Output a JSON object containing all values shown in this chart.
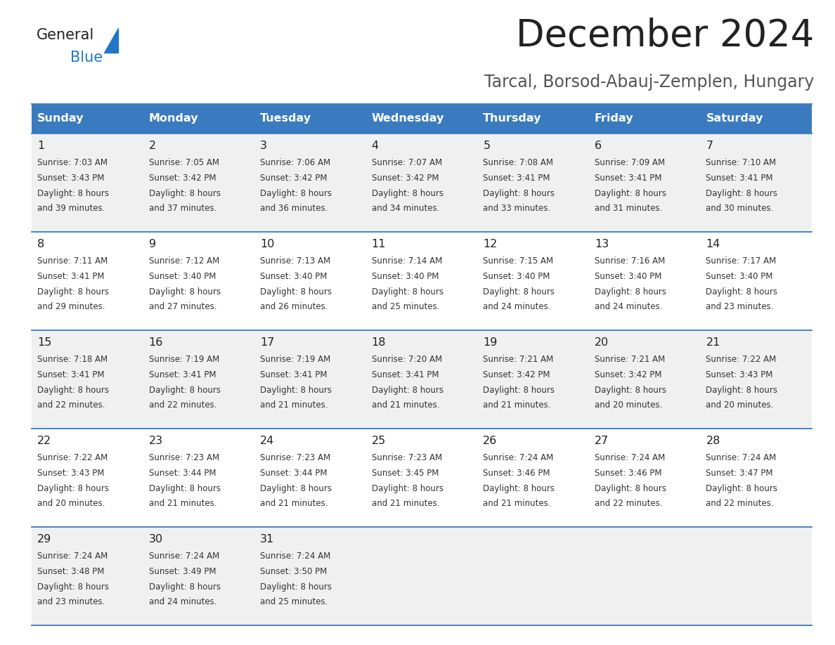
{
  "title": "December 2024",
  "subtitle": "Tarcal, Borsod-Abauj-Zemplen, Hungary",
  "header_bg": "#3a7bbf",
  "header_text": "#ffffff",
  "row_bg_odd": "#f0f0f0",
  "row_bg_even": "#ffffff",
  "day_names": [
    "Sunday",
    "Monday",
    "Tuesday",
    "Wednesday",
    "Thursday",
    "Friday",
    "Saturday"
  ],
  "calendar_data": [
    [
      {
        "day": 1,
        "sunrise": "7:03 AM",
        "sunset": "3:43 PM",
        "daylight": "8 hours and 39 minutes."
      },
      {
        "day": 2,
        "sunrise": "7:05 AM",
        "sunset": "3:42 PM",
        "daylight": "8 hours and 37 minutes."
      },
      {
        "day": 3,
        "sunrise": "7:06 AM",
        "sunset": "3:42 PM",
        "daylight": "8 hours and 36 minutes."
      },
      {
        "day": 4,
        "sunrise": "7:07 AM",
        "sunset": "3:42 PM",
        "daylight": "8 hours and 34 minutes."
      },
      {
        "day": 5,
        "sunrise": "7:08 AM",
        "sunset": "3:41 PM",
        "daylight": "8 hours and 33 minutes."
      },
      {
        "day": 6,
        "sunrise": "7:09 AM",
        "sunset": "3:41 PM",
        "daylight": "8 hours and 31 minutes."
      },
      {
        "day": 7,
        "sunrise": "7:10 AM",
        "sunset": "3:41 PM",
        "daylight": "8 hours and 30 minutes."
      }
    ],
    [
      {
        "day": 8,
        "sunrise": "7:11 AM",
        "sunset": "3:41 PM",
        "daylight": "8 hours and 29 minutes."
      },
      {
        "day": 9,
        "sunrise": "7:12 AM",
        "sunset": "3:40 PM",
        "daylight": "8 hours and 27 minutes."
      },
      {
        "day": 10,
        "sunrise": "7:13 AM",
        "sunset": "3:40 PM",
        "daylight": "8 hours and 26 minutes."
      },
      {
        "day": 11,
        "sunrise": "7:14 AM",
        "sunset": "3:40 PM",
        "daylight": "8 hours and 25 minutes."
      },
      {
        "day": 12,
        "sunrise": "7:15 AM",
        "sunset": "3:40 PM",
        "daylight": "8 hours and 24 minutes."
      },
      {
        "day": 13,
        "sunrise": "7:16 AM",
        "sunset": "3:40 PM",
        "daylight": "8 hours and 24 minutes."
      },
      {
        "day": 14,
        "sunrise": "7:17 AM",
        "sunset": "3:40 PM",
        "daylight": "8 hours and 23 minutes."
      }
    ],
    [
      {
        "day": 15,
        "sunrise": "7:18 AM",
        "sunset": "3:41 PM",
        "daylight": "8 hours and 22 minutes."
      },
      {
        "day": 16,
        "sunrise": "7:19 AM",
        "sunset": "3:41 PM",
        "daylight": "8 hours and 22 minutes."
      },
      {
        "day": 17,
        "sunrise": "7:19 AM",
        "sunset": "3:41 PM",
        "daylight": "8 hours and 21 minutes."
      },
      {
        "day": 18,
        "sunrise": "7:20 AM",
        "sunset": "3:41 PM",
        "daylight": "8 hours and 21 minutes."
      },
      {
        "day": 19,
        "sunrise": "7:21 AM",
        "sunset": "3:42 PM",
        "daylight": "8 hours and 21 minutes."
      },
      {
        "day": 20,
        "sunrise": "7:21 AM",
        "sunset": "3:42 PM",
        "daylight": "8 hours and 20 minutes."
      },
      {
        "day": 21,
        "sunrise": "7:22 AM",
        "sunset": "3:43 PM",
        "daylight": "8 hours and 20 minutes."
      }
    ],
    [
      {
        "day": 22,
        "sunrise": "7:22 AM",
        "sunset": "3:43 PM",
        "daylight": "8 hours and 20 minutes."
      },
      {
        "day": 23,
        "sunrise": "7:23 AM",
        "sunset": "3:44 PM",
        "daylight": "8 hours and 21 minutes."
      },
      {
        "day": 24,
        "sunrise": "7:23 AM",
        "sunset": "3:44 PM",
        "daylight": "8 hours and 21 minutes."
      },
      {
        "day": 25,
        "sunrise": "7:23 AM",
        "sunset": "3:45 PM",
        "daylight": "8 hours and 21 minutes."
      },
      {
        "day": 26,
        "sunrise": "7:24 AM",
        "sunset": "3:46 PM",
        "daylight": "8 hours and 21 minutes."
      },
      {
        "day": 27,
        "sunrise": "7:24 AM",
        "sunset": "3:46 PM",
        "daylight": "8 hours and 22 minutes."
      },
      {
        "day": 28,
        "sunrise": "7:24 AM",
        "sunset": "3:47 PM",
        "daylight": "8 hours and 22 minutes."
      }
    ],
    [
      {
        "day": 29,
        "sunrise": "7:24 AM",
        "sunset": "3:48 PM",
        "daylight": "8 hours and 23 minutes."
      },
      {
        "day": 30,
        "sunrise": "7:24 AM",
        "sunset": "3:49 PM",
        "daylight": "8 hours and 24 minutes."
      },
      {
        "day": 31,
        "sunrise": "7:24 AM",
        "sunset": "3:50 PM",
        "daylight": "8 hours and 25 minutes."
      },
      null,
      null,
      null,
      null
    ]
  ],
  "logo_general_color": "#222222",
  "logo_blue_color": "#2176c7",
  "title_color": "#222222",
  "subtitle_color": "#555555",
  "cell_text_color": "#333333",
  "day_num_color": "#222222",
  "separator_color": "#3a7bbf",
  "figsize": [
    11.88,
    9.18
  ],
  "dpi": 100
}
